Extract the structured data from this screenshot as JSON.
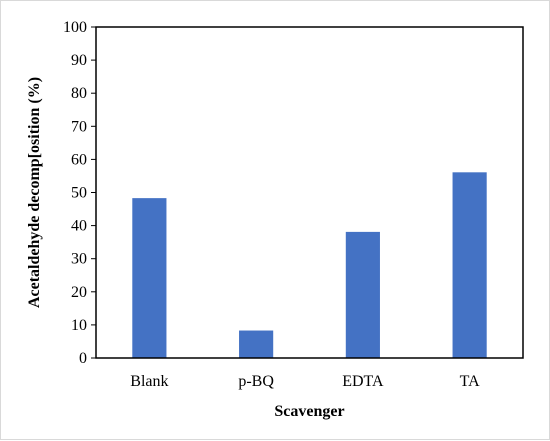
{
  "chart_data": {
    "type": "bar",
    "categories": [
      "Blank",
      "p-BQ",
      "EDTA",
      "TA"
    ],
    "values": [
      48.3,
      8.3,
      38.1,
      56.1
    ],
    "title": "",
    "xlabel": "Scavenger",
    "ylabel": "Acetaldehyde decomp[osition (%)",
    "ylim": [
      0,
      100
    ],
    "yticks": [
      0,
      10,
      20,
      30,
      40,
      50,
      60,
      70,
      80,
      90,
      100
    ],
    "bar_color": "#4472c4",
    "grid": false,
    "legend": "none"
  }
}
